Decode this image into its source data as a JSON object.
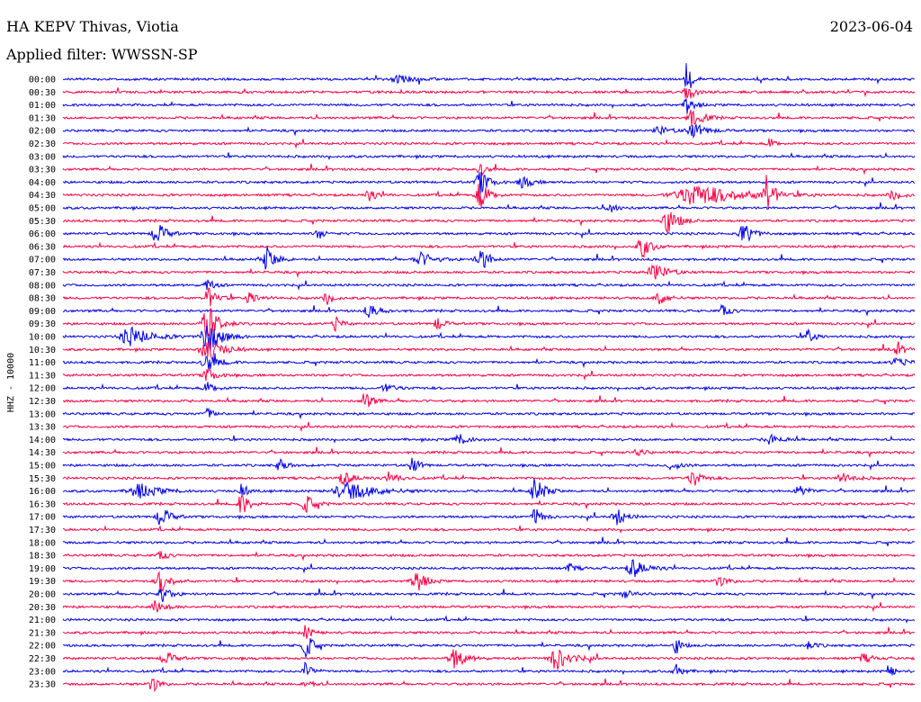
{
  "header": {
    "station": "HA KEPV Thivas, Viotia",
    "filter": "Applied filter: WWSSN-SP",
    "date": "2023-06-04"
  },
  "chart_data": {
    "type": "line",
    "title": "HA KEPV Thivas, Viotia",
    "subtitle": "Applied filter: WWSSN-SP",
    "date": "2023-06-04",
    "ylabel": "HHZ - 10000",
    "colors": [
      "#0000ee",
      "#ff0044"
    ],
    "trace_labels": [
      "00:00",
      "00:30",
      "01:00",
      "01:30",
      "02:00",
      "02:30",
      "03:00",
      "03:30",
      "04:00",
      "04:30",
      "05:00",
      "05:30",
      "06:00",
      "06:30",
      "07:00",
      "07:30",
      "08:00",
      "08:30",
      "09:00",
      "09:30",
      "10:00",
      "10:30",
      "11:00",
      "11:30",
      "12:00",
      "12:30",
      "13:00",
      "13:30",
      "14:00",
      "14:30",
      "15:00",
      "15:30",
      "16:00",
      "16:30",
      "17:00",
      "17:30",
      "18:00",
      "18:30",
      "19:00",
      "19:30",
      "20:00",
      "20:30",
      "21:00",
      "21:30",
      "22:00",
      "22:30",
      "23:00",
      "23:30"
    ],
    "events": [
      {
        "row": 0,
        "t": 0.733,
        "amp": 22,
        "dur": 0.004
      },
      {
        "row": 0,
        "t": 0.395,
        "amp": 4,
        "dur": 0.015
      },
      {
        "row": 1,
        "t": 0.733,
        "amp": 12,
        "dur": 0.006
      },
      {
        "row": 2,
        "t": 0.733,
        "amp": 10,
        "dur": 0.006
      },
      {
        "row": 3,
        "t": 0.74,
        "amp": 10,
        "dur": 0.01
      },
      {
        "row": 4,
        "t": 0.74,
        "amp": 8,
        "dur": 0.012
      },
      {
        "row": 4,
        "t": 0.7,
        "amp": 5,
        "dur": 0.01
      },
      {
        "row": 5,
        "t": 0.83,
        "amp": 6,
        "dur": 0.005
      },
      {
        "row": 7,
        "t": 0.49,
        "amp": 8,
        "dur": 0.005
      },
      {
        "row": 8,
        "t": 0.49,
        "amp": 14,
        "dur": 0.008
      },
      {
        "row": 8,
        "t": 0.54,
        "amp": 7,
        "dur": 0.008
      },
      {
        "row": 9,
        "t": 0.745,
        "amp": 12,
        "dur": 0.04
      },
      {
        "row": 9,
        "t": 0.826,
        "amp": 24,
        "dur": 0.006
      },
      {
        "row": 9,
        "t": 0.49,
        "amp": 16,
        "dur": 0.008
      },
      {
        "row": 9,
        "t": 0.36,
        "amp": 6,
        "dur": 0.008
      },
      {
        "row": 9,
        "t": 0.975,
        "amp": 5,
        "dur": 0.01
      },
      {
        "row": 10,
        "t": 0.64,
        "amp": 6,
        "dur": 0.008
      },
      {
        "row": 11,
        "t": 0.71,
        "amp": 14,
        "dur": 0.01
      },
      {
        "row": 12,
        "t": 0.11,
        "amp": 14,
        "dur": 0.008
      },
      {
        "row": 12,
        "t": 0.8,
        "amp": 14,
        "dur": 0.008
      },
      {
        "row": 12,
        "t": 0.3,
        "amp": 6,
        "dur": 0.006
      },
      {
        "row": 13,
        "t": 0.68,
        "amp": 14,
        "dur": 0.008
      },
      {
        "row": 14,
        "t": 0.24,
        "amp": 14,
        "dur": 0.008
      },
      {
        "row": 14,
        "t": 0.49,
        "amp": 14,
        "dur": 0.008
      },
      {
        "row": 14,
        "t": 0.42,
        "amp": 8,
        "dur": 0.012
      },
      {
        "row": 15,
        "t": 0.695,
        "amp": 10,
        "dur": 0.012
      },
      {
        "row": 16,
        "t": 0.17,
        "amp": 8,
        "dur": 0.006
      },
      {
        "row": 17,
        "t": 0.17,
        "amp": 12,
        "dur": 0.008
      },
      {
        "row": 17,
        "t": 0.31,
        "amp": 8,
        "dur": 0.006
      },
      {
        "row": 17,
        "t": 0.22,
        "amp": 7,
        "dur": 0.008
      },
      {
        "row": 17,
        "t": 0.7,
        "amp": 8,
        "dur": 0.008
      },
      {
        "row": 18,
        "t": 0.36,
        "amp": 7,
        "dur": 0.01
      },
      {
        "row": 18,
        "t": 0.775,
        "amp": 8,
        "dur": 0.006
      },
      {
        "row": 19,
        "t": 0.17,
        "amp": 22,
        "dur": 0.01
      },
      {
        "row": 19,
        "t": 0.32,
        "amp": 8,
        "dur": 0.006
      },
      {
        "row": 19,
        "t": 0.44,
        "amp": 8,
        "dur": 0.006
      },
      {
        "row": 20,
        "t": 0.08,
        "amp": 11,
        "dur": 0.018
      },
      {
        "row": 20,
        "t": 0.17,
        "amp": 20,
        "dur": 0.012
      },
      {
        "row": 20,
        "t": 0.875,
        "amp": 8,
        "dur": 0.006
      },
      {
        "row": 21,
        "t": 0.17,
        "amp": 14,
        "dur": 0.014
      },
      {
        "row": 21,
        "t": 0.98,
        "amp": 5,
        "dur": 0.01
      },
      {
        "row": 22,
        "t": 0.17,
        "amp": 10,
        "dur": 0.01
      },
      {
        "row": 22,
        "t": 0.98,
        "amp": 4,
        "dur": 0.012
      },
      {
        "row": 23,
        "t": 0.17,
        "amp": 8,
        "dur": 0.008
      },
      {
        "row": 24,
        "t": 0.17,
        "amp": 6,
        "dur": 0.008
      },
      {
        "row": 24,
        "t": 0.38,
        "amp": 4,
        "dur": 0.01
      },
      {
        "row": 25,
        "t": 0.355,
        "amp": 12,
        "dur": 0.006
      },
      {
        "row": 26,
        "t": 0.17,
        "amp": 6,
        "dur": 0.006
      },
      {
        "row": 28,
        "t": 0.465,
        "amp": 6,
        "dur": 0.01
      },
      {
        "row": 28,
        "t": 0.83,
        "amp": 6,
        "dur": 0.01
      },
      {
        "row": 29,
        "t": 0.675,
        "amp": 5,
        "dur": 0.006
      },
      {
        "row": 30,
        "t": 0.255,
        "amp": 8,
        "dur": 0.006
      },
      {
        "row": 30,
        "t": 0.41,
        "amp": 10,
        "dur": 0.006
      },
      {
        "row": 30,
        "t": 0.715,
        "amp": 5,
        "dur": 0.008
      },
      {
        "row": 31,
        "t": 0.33,
        "amp": 7,
        "dur": 0.01
      },
      {
        "row": 31,
        "t": 0.385,
        "amp": 5,
        "dur": 0.01
      },
      {
        "row": 31,
        "t": 0.74,
        "amp": 10,
        "dur": 0.008
      },
      {
        "row": 31,
        "t": 0.915,
        "amp": 5,
        "dur": 0.012
      },
      {
        "row": 32,
        "t": 0.09,
        "amp": 8,
        "dur": 0.018
      },
      {
        "row": 32,
        "t": 0.335,
        "amp": 10,
        "dur": 0.025
      },
      {
        "row": 32,
        "t": 0.555,
        "amp": 16,
        "dur": 0.008
      },
      {
        "row": 32,
        "t": 0.21,
        "amp": 8,
        "dur": 0.006
      },
      {
        "row": 32,
        "t": 0.865,
        "amp": 5,
        "dur": 0.01
      },
      {
        "row": 33,
        "t": 0.21,
        "amp": 12,
        "dur": 0.008
      },
      {
        "row": 33,
        "t": 0.285,
        "amp": 10,
        "dur": 0.008
      },
      {
        "row": 34,
        "t": 0.115,
        "amp": 12,
        "dur": 0.008
      },
      {
        "row": 34,
        "t": 0.65,
        "amp": 10,
        "dur": 0.008
      },
      {
        "row": 34,
        "t": 0.555,
        "amp": 12,
        "dur": 0.006
      },
      {
        "row": 37,
        "t": 0.115,
        "amp": 6,
        "dur": 0.006
      },
      {
        "row": 38,
        "t": 0.67,
        "amp": 10,
        "dur": 0.012
      },
      {
        "row": 38,
        "t": 0.595,
        "amp": 5,
        "dur": 0.006
      },
      {
        "row": 39,
        "t": 0.115,
        "amp": 14,
        "dur": 0.008
      },
      {
        "row": 39,
        "t": 0.415,
        "amp": 14,
        "dur": 0.008
      },
      {
        "row": 39,
        "t": 0.77,
        "amp": 6,
        "dur": 0.008
      },
      {
        "row": 40,
        "t": 0.115,
        "amp": 10,
        "dur": 0.008
      },
      {
        "row": 40,
        "t": 0.66,
        "amp": 4,
        "dur": 0.008
      },
      {
        "row": 41,
        "t": 0.11,
        "amp": 8,
        "dur": 0.008
      },
      {
        "row": 43,
        "t": 0.285,
        "amp": 8,
        "dur": 0.006
      },
      {
        "row": 44,
        "t": 0.285,
        "amp": 16,
        "dur": 0.006
      },
      {
        "row": 44,
        "t": 0.72,
        "amp": 10,
        "dur": 0.005
      },
      {
        "row": 44,
        "t": 0.875,
        "amp": 4,
        "dur": 0.008
      },
      {
        "row": 45,
        "t": 0.12,
        "amp": 8,
        "dur": 0.008
      },
      {
        "row": 45,
        "t": 0.46,
        "amp": 12,
        "dur": 0.01
      },
      {
        "row": 45,
        "t": 0.58,
        "amp": 12,
        "dur": 0.014
      },
      {
        "row": 45,
        "t": 0.94,
        "amp": 5,
        "dur": 0.008
      },
      {
        "row": 46,
        "t": 0.285,
        "amp": 10,
        "dur": 0.006
      },
      {
        "row": 46,
        "t": 0.72,
        "amp": 8,
        "dur": 0.006
      },
      {
        "row": 46,
        "t": 0.97,
        "amp": 10,
        "dur": 0.004
      },
      {
        "row": 47,
        "t": 0.105,
        "amp": 10,
        "dur": 0.006
      },
      {
        "row": 47,
        "t": 0.285,
        "amp": 6,
        "dur": 0.006
      }
    ]
  }
}
